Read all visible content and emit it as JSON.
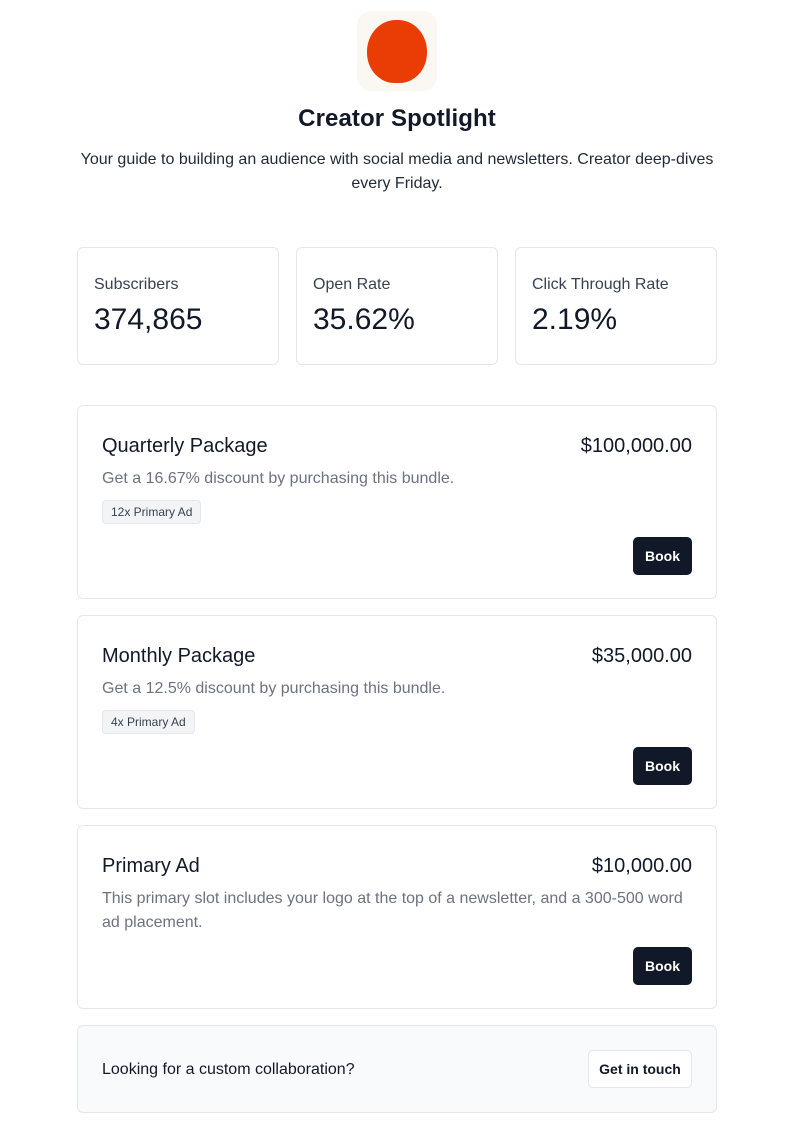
{
  "brand": {
    "title": "Creator Spotlight",
    "subtitle": "Your guide to building an audience with social media and newsletters. Creator deep-dives every Friday.",
    "logo_icon": "orange-blob-logo",
    "logo_color": "#ea3c05",
    "logo_bg": "#fbf8f3"
  },
  "stats": [
    {
      "label": "Subscribers",
      "value": "374,865"
    },
    {
      "label": "Open Rate",
      "value": "35.62%"
    },
    {
      "label": "Click Through Rate",
      "value": "2.19%"
    }
  ],
  "packages": [
    {
      "title": "Quarterly Package",
      "price": "$100,000.00",
      "description": "Get a 16.67% discount by purchasing this bundle.",
      "badge": "12x Primary Ad",
      "button": "Book"
    },
    {
      "title": "Monthly Package",
      "price": "$35,000.00",
      "description": "Get a 12.5% discount by purchasing this bundle.",
      "badge": "4x Primary Ad",
      "button": "Book"
    },
    {
      "title": "Primary Ad",
      "price": "$10,000.00",
      "description": "This primary slot includes your logo at the top of a newsletter, and a 300-500 word ad placement.",
      "button": "Book"
    }
  ],
  "custom": {
    "text": "Looking for a custom collaboration?",
    "button": "Get in touch"
  },
  "colors": {
    "accent_dark": "#111827",
    "border": "#e5e7eb",
    "muted_text": "#6b7280"
  }
}
